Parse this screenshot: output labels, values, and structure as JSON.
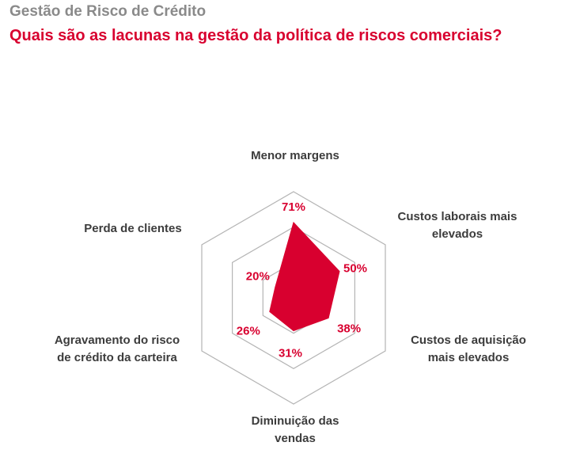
{
  "header": {
    "subtitle": "Gestão de Risco de Crédito",
    "title": "Quais são as lacunas na gestão da política de riscos comerciais?"
  },
  "chart_data": {
    "type": "radar",
    "title": "Quais são as lacunas na gestão da política de riscos comerciais?",
    "subtitle": "Gestão de Risco de Crédito",
    "unit": "%",
    "range": [
      0,
      100
    ],
    "rings": 3,
    "grid": true,
    "fill_color": "#d8002f",
    "grid_color": "#b4b4b4",
    "categories": [
      "Menor margens",
      "Custos laborais mais elevados",
      "Custos de aquisição mais elevados",
      "Diminuição das vendas",
      "Agravamento do risco de crédito da carteira",
      "Perda de clientes"
    ],
    "category_lines": [
      [
        "Menor margens"
      ],
      [
        "Custos laborais mais",
        "elevados"
      ],
      [
        "Custos de aquisição",
        "mais elevados"
      ],
      [
        "Diminuição das",
        "vendas"
      ],
      [
        "Agravamento do risco",
        "de crédito da carteira"
      ],
      [
        "Perda de clientes"
      ]
    ],
    "values": [
      71,
      50,
      38,
      31,
      26,
      20
    ],
    "value_labels": [
      "71%",
      "50%",
      "38%",
      "31%",
      "26%",
      "20%"
    ]
  }
}
